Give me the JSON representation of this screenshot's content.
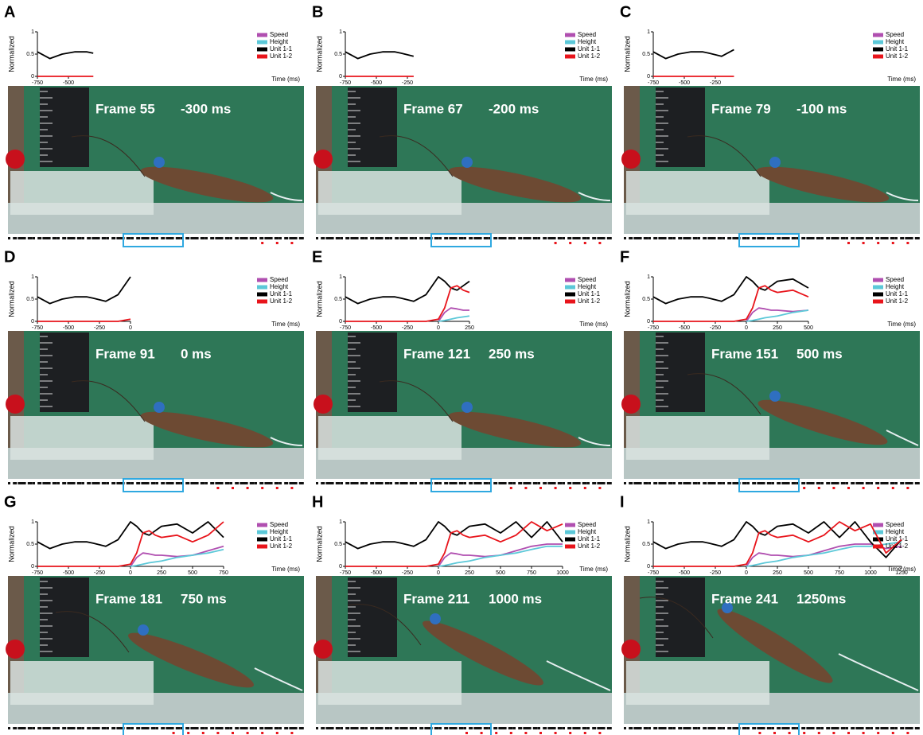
{
  "chart_data": [
    {
      "type": "line",
      "panel": "A",
      "frame_label": "Frame 55",
      "time_label": "-300 ms",
      "y_label": "Normalized",
      "x_label": "Time (ms)",
      "x": [
        -750,
        -650,
        -550,
        -450,
        -350,
        -300
      ],
      "xlim": [
        -750,
        -300
      ],
      "xticks": [
        -750,
        -500
      ],
      "ylim": [
        0,
        1
      ],
      "yticks": [
        0,
        0.5,
        1
      ],
      "series": [
        {
          "name": "Speed",
          "color": "#b04fb0",
          "values": [
            null,
            null,
            null,
            null,
            null,
            null
          ]
        },
        {
          "name": "Height",
          "color": "#5bc8d8",
          "values": [
            null,
            null,
            null,
            null,
            null,
            null
          ]
        },
        {
          "name": "Unit 1-1",
          "color": "#000000",
          "values": [
            0.55,
            0.4,
            0.5,
            0.55,
            0.55,
            0.52
          ]
        },
        {
          "name": "Unit 1-2",
          "color": "#e8141b",
          "values": [
            0,
            0,
            0,
            0,
            0,
            0
          ]
        }
      ]
    },
    {
      "type": "line",
      "panel": "B",
      "frame_label": "Frame 67",
      "time_label": "-200 ms",
      "y_label": "Normalized",
      "x_label": "Time (ms)",
      "x": [
        -750,
        -650,
        -550,
        -450,
        -350,
        -300,
        -200
      ],
      "xlim": [
        -750,
        -200
      ],
      "xticks": [
        -750,
        -500,
        -250
      ],
      "ylim": [
        0,
        1
      ],
      "yticks": [
        0,
        0.5,
        1
      ],
      "series": [
        {
          "name": "Speed",
          "color": "#b04fb0",
          "values": [
            null,
            null,
            null,
            null,
            null,
            null,
            null
          ]
        },
        {
          "name": "Height",
          "color": "#5bc8d8",
          "values": [
            null,
            null,
            null,
            null,
            null,
            null,
            null
          ]
        },
        {
          "name": "Unit 1-1",
          "color": "#000000",
          "values": [
            0.55,
            0.4,
            0.5,
            0.55,
            0.55,
            0.52,
            0.45
          ]
        },
        {
          "name": "Unit 1-2",
          "color": "#e8141b",
          "values": [
            0,
            0,
            0,
            0,
            0,
            0,
            0
          ]
        }
      ]
    },
    {
      "type": "line",
      "panel": "C",
      "frame_label": "Frame 79",
      "time_label": "-100 ms",
      "y_label": "Normalized",
      "x_label": "Time (ms)",
      "x": [
        -750,
        -650,
        -550,
        -450,
        -350,
        -300,
        -200,
        -100
      ],
      "xlim": [
        -750,
        -100
      ],
      "xticks": [
        -750,
        -500,
        -250
      ],
      "ylim": [
        0,
        1
      ],
      "yticks": [
        0,
        0.5,
        1
      ],
      "series": [
        {
          "name": "Speed",
          "color": "#b04fb0",
          "values": [
            null,
            null,
            null,
            null,
            null,
            null,
            null,
            null
          ]
        },
        {
          "name": "Height",
          "color": "#5bc8d8",
          "values": [
            null,
            null,
            null,
            null,
            null,
            null,
            null,
            null
          ]
        },
        {
          "name": "Unit 1-1",
          "color": "#000000",
          "values": [
            0.55,
            0.4,
            0.5,
            0.55,
            0.55,
            0.52,
            0.45,
            0.6
          ]
        },
        {
          "name": "Unit 1-2",
          "color": "#e8141b",
          "values": [
            0,
            0,
            0,
            0,
            0,
            0,
            0,
            0
          ]
        }
      ]
    },
    {
      "type": "line",
      "panel": "D",
      "frame_label": "Frame 91",
      "time_label": "0 ms",
      "y_label": "Normalized",
      "x_label": "Time (ms)",
      "x": [
        -750,
        -650,
        -550,
        -450,
        -350,
        -300,
        -200,
        -100,
        0
      ],
      "xlim": [
        -750,
        0
      ],
      "xticks": [
        -750,
        -500,
        -250,
        0
      ],
      "ylim": [
        0,
        1
      ],
      "yticks": [
        0,
        0.5,
        1
      ],
      "series": [
        {
          "name": "Speed",
          "color": "#b04fb0",
          "values": [
            null,
            null,
            null,
            null,
            null,
            null,
            null,
            null,
            0
          ]
        },
        {
          "name": "Height",
          "color": "#5bc8d8",
          "values": [
            null,
            null,
            null,
            null,
            null,
            null,
            null,
            null,
            0
          ]
        },
        {
          "name": "Unit 1-1",
          "color": "#000000",
          "values": [
            0.55,
            0.4,
            0.5,
            0.55,
            0.55,
            0.52,
            0.45,
            0.6,
            1.0
          ]
        },
        {
          "name": "Unit 1-2",
          "color": "#e8141b",
          "values": [
            0,
            0,
            0,
            0,
            0,
            0,
            0,
            0,
            0.05
          ]
        }
      ]
    },
    {
      "type": "line",
      "panel": "E",
      "frame_label": "Frame 121",
      "time_label": "250 ms",
      "y_label": "Normalized",
      "x_label": "Time (ms)",
      "x": [
        -750,
        -650,
        -550,
        -450,
        -350,
        -300,
        -200,
        -100,
        0,
        50,
        100,
        150,
        200,
        250
      ],
      "xlim": [
        -750,
        250
      ],
      "xticks": [
        -750,
        -500,
        -250,
        0,
        250
      ],
      "ylim": [
        0,
        1
      ],
      "yticks": [
        0,
        0.5,
        1
      ],
      "series": [
        {
          "name": "Speed",
          "color": "#b04fb0",
          "values": [
            null,
            null,
            null,
            null,
            null,
            null,
            null,
            null,
            0,
            0.2,
            0.3,
            0.28,
            0.25,
            0.25
          ]
        },
        {
          "name": "Height",
          "color": "#5bc8d8",
          "values": [
            null,
            null,
            null,
            null,
            null,
            null,
            null,
            null,
            0,
            0.02,
            0.05,
            0.08,
            0.1,
            0.12
          ]
        },
        {
          "name": "Unit 1-1",
          "color": "#000000",
          "values": [
            0.55,
            0.4,
            0.5,
            0.55,
            0.55,
            0.52,
            0.45,
            0.6,
            1.0,
            0.9,
            0.75,
            0.7,
            0.8,
            0.9
          ]
        },
        {
          "name": "Unit 1-2",
          "color": "#e8141b",
          "values": [
            0,
            0,
            0,
            0,
            0,
            0,
            0,
            0,
            0.05,
            0.3,
            0.75,
            0.8,
            0.7,
            0.65
          ]
        }
      ]
    },
    {
      "type": "line",
      "panel": "F",
      "frame_label": "Frame 151",
      "time_label": "500 ms",
      "y_label": "Normalized",
      "x_label": "Time (ms)",
      "x": [
        -750,
        -650,
        -550,
        -450,
        -350,
        -300,
        -200,
        -100,
        0,
        50,
        100,
        150,
        200,
        250,
        375,
        500
      ],
      "xlim": [
        -750,
        500
      ],
      "xticks": [
        -750,
        -500,
        -250,
        0,
        250,
        500
      ],
      "ylim": [
        0,
        1
      ],
      "yticks": [
        0,
        0.5,
        1
      ],
      "series": [
        {
          "name": "Speed",
          "color": "#b04fb0",
          "values": [
            null,
            null,
            null,
            null,
            null,
            null,
            null,
            null,
            0,
            0.2,
            0.3,
            0.28,
            0.25,
            0.25,
            0.22,
            0.25
          ]
        },
        {
          "name": "Height",
          "color": "#5bc8d8",
          "values": [
            null,
            null,
            null,
            null,
            null,
            null,
            null,
            null,
            0,
            0.02,
            0.05,
            0.08,
            0.1,
            0.12,
            0.2,
            0.25
          ]
        },
        {
          "name": "Unit 1-1",
          "color": "#000000",
          "values": [
            0.55,
            0.4,
            0.5,
            0.55,
            0.55,
            0.52,
            0.45,
            0.6,
            1.0,
            0.9,
            0.75,
            0.7,
            0.8,
            0.9,
            0.95,
            0.75
          ]
        },
        {
          "name": "Unit 1-2",
          "color": "#e8141b",
          "values": [
            0,
            0,
            0,
            0,
            0,
            0,
            0,
            0,
            0.05,
            0.3,
            0.75,
            0.8,
            0.7,
            0.65,
            0.7,
            0.55
          ]
        }
      ]
    },
    {
      "type": "line",
      "panel": "G",
      "frame_label": "Frame 181",
      "time_label": "750 ms",
      "y_label": "Normalized",
      "x_label": "Time (ms)",
      "x": [
        -750,
        -650,
        -550,
        -450,
        -350,
        -300,
        -200,
        -100,
        0,
        50,
        100,
        150,
        200,
        250,
        375,
        500,
        625,
        750
      ],
      "xlim": [
        -750,
        750
      ],
      "xticks": [
        -750,
        -500,
        -250,
        0,
        250,
        500,
        750
      ],
      "ylim": [
        0,
        1
      ],
      "yticks": [
        0,
        0.5,
        1
      ],
      "series": [
        {
          "name": "Speed",
          "color": "#b04fb0",
          "values": [
            null,
            null,
            null,
            null,
            null,
            null,
            null,
            null,
            0,
            0.2,
            0.3,
            0.28,
            0.25,
            0.25,
            0.22,
            0.25,
            0.35,
            0.45
          ]
        },
        {
          "name": "Height",
          "color": "#5bc8d8",
          "values": [
            null,
            null,
            null,
            null,
            null,
            null,
            null,
            null,
            0,
            0.02,
            0.05,
            0.08,
            0.1,
            0.12,
            0.2,
            0.25,
            0.3,
            0.38
          ]
        },
        {
          "name": "Unit 1-1",
          "color": "#000000",
          "values": [
            0.55,
            0.4,
            0.5,
            0.55,
            0.55,
            0.52,
            0.45,
            0.6,
            1.0,
            0.9,
            0.75,
            0.7,
            0.8,
            0.9,
            0.95,
            0.75,
            1.0,
            0.65
          ]
        },
        {
          "name": "Unit 1-2",
          "color": "#e8141b",
          "values": [
            0,
            0,
            0,
            0,
            0,
            0,
            0,
            0,
            0.05,
            0.3,
            0.75,
            0.8,
            0.7,
            0.65,
            0.7,
            0.55,
            0.7,
            1.0
          ]
        }
      ]
    },
    {
      "type": "line",
      "panel": "H",
      "frame_label": "Frame 211",
      "time_label": "1000 ms",
      "y_label": "Normalized",
      "x_label": "Time (ms)",
      "x": [
        -750,
        -650,
        -550,
        -450,
        -350,
        -300,
        -200,
        -100,
        0,
        50,
        100,
        150,
        200,
        250,
        375,
        500,
        625,
        750,
        875,
        1000
      ],
      "xlim": [
        -750,
        1000
      ],
      "xticks": [
        -750,
        -500,
        -250,
        0,
        250,
        500,
        750,
        1000
      ],
      "ylim": [
        0,
        1
      ],
      "yticks": [
        0,
        0.5,
        1
      ],
      "series": [
        {
          "name": "Speed",
          "color": "#b04fb0",
          "values": [
            null,
            null,
            null,
            null,
            null,
            null,
            null,
            null,
            0,
            0.2,
            0.3,
            0.28,
            0.25,
            0.25,
            0.22,
            0.25,
            0.35,
            0.45,
            0.5,
            0.5
          ]
        },
        {
          "name": "Height",
          "color": "#5bc8d8",
          "values": [
            null,
            null,
            null,
            null,
            null,
            null,
            null,
            null,
            0,
            0.02,
            0.05,
            0.08,
            0.1,
            0.12,
            0.2,
            0.25,
            0.3,
            0.38,
            0.45,
            0.45
          ]
        },
        {
          "name": "Unit 1-1",
          "color": "#000000",
          "values": [
            0.55,
            0.4,
            0.5,
            0.55,
            0.55,
            0.52,
            0.45,
            0.6,
            1.0,
            0.9,
            0.75,
            0.7,
            0.8,
            0.9,
            0.95,
            0.75,
            1.0,
            0.65,
            1.0,
            0.55
          ]
        },
        {
          "name": "Unit 1-2",
          "color": "#e8141b",
          "values": [
            0,
            0,
            0,
            0,
            0,
            0,
            0,
            0,
            0.05,
            0.3,
            0.75,
            0.8,
            0.7,
            0.65,
            0.7,
            0.55,
            0.7,
            1.0,
            0.8,
            0.95
          ]
        }
      ]
    },
    {
      "type": "line",
      "panel": "I",
      "frame_label": "Frame 241",
      "time_label": "1250ms",
      "y_label": "Normalized",
      "x_label": "Time (ms)",
      "x": [
        -750,
        -650,
        -550,
        -450,
        -350,
        -300,
        -200,
        -100,
        0,
        50,
        100,
        150,
        200,
        250,
        375,
        500,
        625,
        750,
        875,
        1000,
        1125,
        1250
      ],
      "xlim": [
        -750,
        1250
      ],
      "xticks": [
        -750,
        -500,
        -250,
        0,
        250,
        500,
        750,
        1000,
        1250
      ],
      "ylim": [
        0,
        1
      ],
      "yticks": [
        0,
        0.5,
        1
      ],
      "series": [
        {
          "name": "Speed",
          "color": "#b04fb0",
          "values": [
            null,
            null,
            null,
            null,
            null,
            null,
            null,
            null,
            0,
            0.2,
            0.3,
            0.28,
            0.25,
            0.25,
            0.22,
            0.25,
            0.35,
            0.45,
            0.5,
            0.5,
            0.4,
            0.45
          ]
        },
        {
          "name": "Height",
          "color": "#5bc8d8",
          "values": [
            null,
            null,
            null,
            null,
            null,
            null,
            null,
            null,
            0,
            0.02,
            0.05,
            0.08,
            0.1,
            0.12,
            0.2,
            0.25,
            0.3,
            0.38,
            0.45,
            0.45,
            0.5,
            0.55
          ]
        },
        {
          "name": "Unit 1-1",
          "color": "#000000",
          "values": [
            0.55,
            0.4,
            0.5,
            0.55,
            0.55,
            0.52,
            0.45,
            0.6,
            1.0,
            0.9,
            0.75,
            0.7,
            0.8,
            0.9,
            0.95,
            0.75,
            1.0,
            0.65,
            1.0,
            0.55,
            0.2,
            0.6
          ]
        },
        {
          "name": "Unit 1-2",
          "color": "#e8141b",
          "values": [
            0,
            0,
            0,
            0,
            0,
            0,
            0,
            0,
            0.05,
            0.3,
            0.75,
            0.8,
            0.7,
            0.65,
            0.7,
            0.55,
            0.7,
            1.0,
            0.8,
            0.95,
            0.3,
            0.6
          ]
        }
      ]
    }
  ]
}
